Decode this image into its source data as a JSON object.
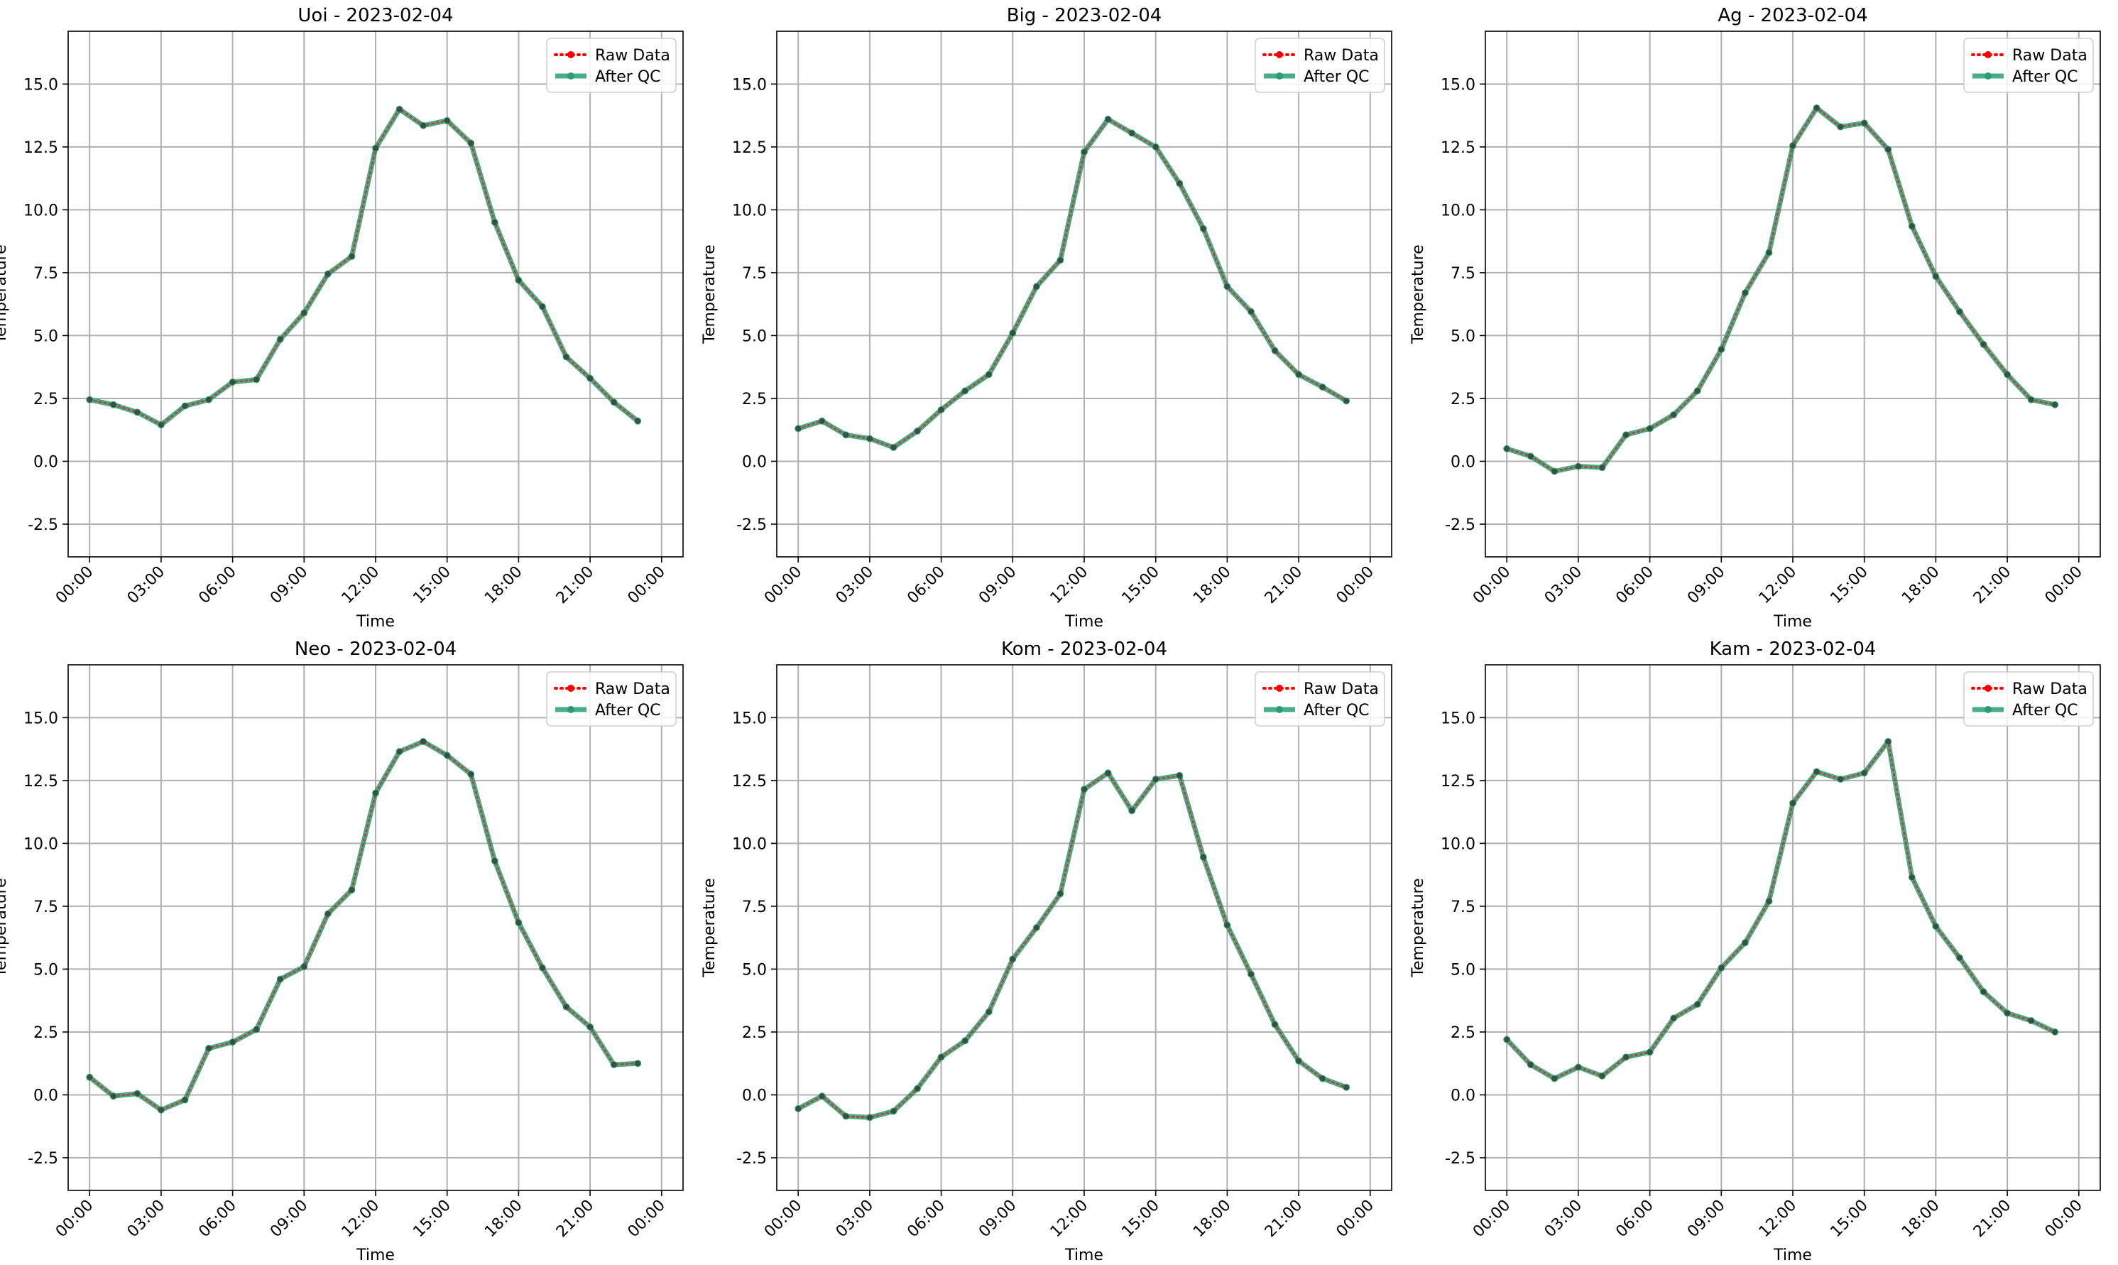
{
  "chart_data": [
    {
      "type": "line",
      "title": "Uoi - 2023-02-04",
      "xlabel": "Time",
      "ylabel": "Temperature",
      "x": [
        "00:00",
        "01:00",
        "02:00",
        "03:00",
        "04:00",
        "05:00",
        "06:00",
        "07:00",
        "08:00",
        "09:00",
        "10:00",
        "11:00",
        "12:00",
        "13:00",
        "14:00",
        "15:00",
        "16:00",
        "17:00",
        "18:00",
        "19:00",
        "20:00",
        "21:00",
        "22:00",
        "23:00"
      ],
      "xticks": [
        "00:00",
        "03:00",
        "06:00",
        "09:00",
        "12:00",
        "15:00",
        "18:00",
        "21:00",
        "00:00"
      ],
      "yticks": [
        "15.0",
        "12.5",
        "10.0",
        "7.5",
        "5.0",
        "2.5",
        "0.0",
        "-2.5"
      ],
      "ylim": [
        -3.8,
        17.1
      ],
      "grid": true,
      "legend": "top-right",
      "series": [
        {
          "name": "Raw Data",
          "color": "#ff0000",
          "style": "dotted",
          "values": [
            2.45,
            2.25,
            1.95,
            1.45,
            2.2,
            2.45,
            3.15,
            3.25,
            4.85,
            5.9,
            7.45,
            8.15,
            12.45,
            14.0,
            13.35,
            13.55,
            12.65,
            9.5,
            7.2,
            6.15,
            4.15,
            3.3,
            2.35,
            1.6
          ]
        },
        {
          "name": "After QC",
          "color": "#2a9d74",
          "style": "solid",
          "values": [
            2.45,
            2.25,
            1.95,
            1.45,
            2.2,
            2.45,
            3.15,
            3.25,
            4.85,
            5.9,
            7.45,
            8.15,
            12.45,
            14.0,
            13.35,
            13.55,
            12.65,
            9.5,
            7.2,
            6.15,
            4.15,
            3.3,
            2.35,
            1.6
          ]
        }
      ]
    },
    {
      "type": "line",
      "title": "Big - 2023-02-04",
      "xlabel": "Time",
      "ylabel": "Temperature",
      "x": [
        "00:00",
        "01:00",
        "02:00",
        "03:00",
        "04:00",
        "05:00",
        "06:00",
        "07:00",
        "08:00",
        "09:00",
        "10:00",
        "11:00",
        "12:00",
        "13:00",
        "14:00",
        "15:00",
        "16:00",
        "17:00",
        "18:00",
        "19:00",
        "20:00",
        "21:00",
        "22:00",
        "23:00"
      ],
      "xticks": [
        "00:00",
        "03:00",
        "06:00",
        "09:00",
        "12:00",
        "15:00",
        "18:00",
        "21:00",
        "00:00"
      ],
      "yticks": [
        "15.0",
        "12.5",
        "10.0",
        "7.5",
        "5.0",
        "2.5",
        "0.0",
        "-2.5"
      ],
      "ylim": [
        -3.8,
        17.1
      ],
      "grid": true,
      "legend": "top-right",
      "series": [
        {
          "name": "Raw Data",
          "color": "#ff0000",
          "style": "dotted",
          "values": [
            1.3,
            1.6,
            1.05,
            0.9,
            0.55,
            1.2,
            2.05,
            2.8,
            3.45,
            5.1,
            6.95,
            8.0,
            12.3,
            13.6,
            13.05,
            12.5,
            11.05,
            9.25,
            6.95,
            5.95,
            4.4,
            3.45,
            2.95,
            2.4
          ]
        },
        {
          "name": "After QC",
          "color": "#2a9d74",
          "style": "solid",
          "values": [
            1.3,
            1.6,
            1.05,
            0.9,
            0.55,
            1.2,
            2.05,
            2.8,
            3.45,
            5.1,
            6.95,
            8.0,
            12.3,
            13.6,
            13.05,
            12.5,
            11.05,
            9.25,
            6.95,
            5.95,
            4.4,
            3.45,
            2.95,
            2.4
          ]
        }
      ]
    },
    {
      "type": "line",
      "title": "Ag - 2023-02-04",
      "xlabel": "Time",
      "ylabel": "Temperature",
      "x": [
        "00:00",
        "01:00",
        "02:00",
        "03:00",
        "04:00",
        "05:00",
        "06:00",
        "07:00",
        "08:00",
        "09:00",
        "10:00",
        "11:00",
        "12:00",
        "13:00",
        "14:00",
        "15:00",
        "16:00",
        "17:00",
        "18:00",
        "19:00",
        "20:00",
        "21:00",
        "22:00",
        "23:00"
      ],
      "xticks": [
        "00:00",
        "03:00",
        "06:00",
        "09:00",
        "12:00",
        "15:00",
        "18:00",
        "21:00",
        "00:00"
      ],
      "yticks": [
        "15.0",
        "12.5",
        "10.0",
        "7.5",
        "5.0",
        "2.5",
        "0.0",
        "-2.5"
      ],
      "ylim": [
        -3.8,
        17.1
      ],
      "grid": true,
      "legend": "top-right",
      "series": [
        {
          "name": "Raw Data",
          "color": "#ff0000",
          "style": "dotted",
          "values": [
            0.5,
            0.2,
            -0.4,
            -0.2,
            -0.25,
            1.05,
            1.3,
            1.85,
            2.8,
            4.45,
            6.7,
            8.3,
            12.55,
            14.05,
            13.3,
            13.45,
            12.4,
            9.35,
            7.35,
            5.95,
            4.65,
            3.45,
            2.45,
            2.25
          ]
        },
        {
          "name": "After QC",
          "color": "#2a9d74",
          "style": "solid",
          "values": [
            0.5,
            0.2,
            -0.4,
            -0.2,
            -0.25,
            1.05,
            1.3,
            1.85,
            2.8,
            4.45,
            6.7,
            8.3,
            12.55,
            14.05,
            13.3,
            13.45,
            12.4,
            9.35,
            7.35,
            5.95,
            4.65,
            3.45,
            2.45,
            2.25
          ]
        }
      ]
    },
    {
      "type": "line",
      "title": "Neo - 2023-02-04",
      "xlabel": "Time",
      "ylabel": "Temperature",
      "x": [
        "00:00",
        "01:00",
        "02:00",
        "03:00",
        "04:00",
        "05:00",
        "06:00",
        "07:00",
        "08:00",
        "09:00",
        "10:00",
        "11:00",
        "12:00",
        "13:00",
        "14:00",
        "15:00",
        "16:00",
        "17:00",
        "18:00",
        "19:00",
        "20:00",
        "21:00",
        "22:00",
        "23:00"
      ],
      "xticks": [
        "00:00",
        "03:00",
        "06:00",
        "09:00",
        "12:00",
        "15:00",
        "18:00",
        "21:00",
        "00:00"
      ],
      "yticks": [
        "15.0",
        "12.5",
        "10.0",
        "7.5",
        "5.0",
        "2.5",
        "0.0",
        "-2.5"
      ],
      "ylim": [
        -3.8,
        17.1
      ],
      "grid": true,
      "legend": "top-right",
      "series": [
        {
          "name": "Raw Data",
          "color": "#ff0000",
          "style": "dotted",
          "values": [
            0.7,
            -0.05,
            0.05,
            -0.6,
            -0.2,
            1.85,
            2.1,
            2.6,
            4.6,
            5.1,
            7.2,
            8.15,
            12.0,
            13.65,
            14.05,
            13.5,
            12.75,
            9.3,
            6.85,
            5.05,
            3.5,
            2.7,
            1.2,
            1.25
          ]
        },
        {
          "name": "After QC",
          "color": "#2a9d74",
          "style": "solid",
          "values": [
            0.7,
            -0.05,
            0.05,
            -0.6,
            -0.2,
            1.85,
            2.1,
            2.6,
            4.6,
            5.1,
            7.2,
            8.15,
            12.0,
            13.65,
            14.05,
            13.5,
            12.75,
            9.3,
            6.85,
            5.05,
            3.5,
            2.7,
            1.2,
            1.25
          ]
        }
      ]
    },
    {
      "type": "line",
      "title": "Kom - 2023-02-04",
      "xlabel": "Time",
      "ylabel": "Temperature",
      "x": [
        "00:00",
        "01:00",
        "02:00",
        "03:00",
        "04:00",
        "05:00",
        "06:00",
        "07:00",
        "08:00",
        "09:00",
        "10:00",
        "11:00",
        "12:00",
        "13:00",
        "14:00",
        "15:00",
        "16:00",
        "17:00",
        "18:00",
        "19:00",
        "20:00",
        "21:00",
        "22:00",
        "23:00"
      ],
      "xticks": [
        "00:00",
        "03:00",
        "06:00",
        "09:00",
        "12:00",
        "15:00",
        "18:00",
        "21:00",
        "00:00"
      ],
      "yticks": [
        "15.0",
        "12.5",
        "10.0",
        "7.5",
        "5.0",
        "2.5",
        "0.0",
        "-2.5"
      ],
      "ylim": [
        -3.8,
        17.1
      ],
      "grid": true,
      "legend": "top-right",
      "series": [
        {
          "name": "Raw Data",
          "color": "#ff0000",
          "style": "dotted",
          "values": [
            -0.55,
            -0.05,
            -0.85,
            -0.9,
            -0.65,
            0.25,
            1.5,
            2.15,
            3.3,
            5.4,
            6.65,
            8.0,
            12.15,
            12.8,
            11.3,
            12.55,
            12.7,
            9.45,
            6.75,
            4.8,
            2.8,
            1.35,
            0.65,
            0.3
          ]
        },
        {
          "name": "After QC",
          "color": "#2a9d74",
          "style": "solid",
          "values": [
            -0.55,
            -0.05,
            -0.85,
            -0.9,
            -0.65,
            0.25,
            1.5,
            2.15,
            3.3,
            5.4,
            6.65,
            8.0,
            12.15,
            12.8,
            11.3,
            12.55,
            12.7,
            9.45,
            6.75,
            4.8,
            2.8,
            1.35,
            0.65,
            0.3
          ]
        }
      ]
    },
    {
      "type": "line",
      "title": "Kam - 2023-02-04",
      "xlabel": "Time",
      "ylabel": "Temperature",
      "x": [
        "00:00",
        "01:00",
        "02:00",
        "03:00",
        "04:00",
        "05:00",
        "06:00",
        "07:00",
        "08:00",
        "09:00",
        "10:00",
        "11:00",
        "12:00",
        "13:00",
        "14:00",
        "15:00",
        "16:00",
        "17:00",
        "18:00",
        "19:00",
        "20:00",
        "21:00",
        "22:00",
        "23:00"
      ],
      "xticks": [
        "00:00",
        "03:00",
        "06:00",
        "09:00",
        "12:00",
        "15:00",
        "18:00",
        "21:00",
        "00:00"
      ],
      "yticks": [
        "15.0",
        "12.5",
        "10.0",
        "7.5",
        "5.0",
        "2.5",
        "0.0",
        "-2.5"
      ],
      "ylim": [
        -3.8,
        17.1
      ],
      "grid": true,
      "legend": "top-right",
      "series": [
        {
          "name": "Raw Data",
          "color": "#ff0000",
          "style": "dotted",
          "values": [
            2.2,
            1.2,
            0.65,
            1.1,
            0.75,
            1.5,
            1.7,
            3.05,
            3.6,
            5.05,
            6.05,
            7.7,
            11.6,
            12.85,
            12.55,
            12.8,
            14.05,
            8.65,
            6.7,
            5.45,
            4.1,
            3.25,
            2.95,
            2.5
          ]
        },
        {
          "name": "After QC",
          "color": "#2a9d74",
          "style": "solid",
          "values": [
            2.2,
            1.2,
            0.65,
            1.1,
            0.75,
            1.5,
            1.7,
            3.05,
            3.6,
            5.05,
            6.05,
            7.7,
            11.6,
            12.85,
            12.55,
            12.8,
            14.05,
            8.65,
            6.7,
            5.45,
            4.1,
            3.25,
            2.95,
            2.5
          ]
        }
      ]
    }
  ]
}
